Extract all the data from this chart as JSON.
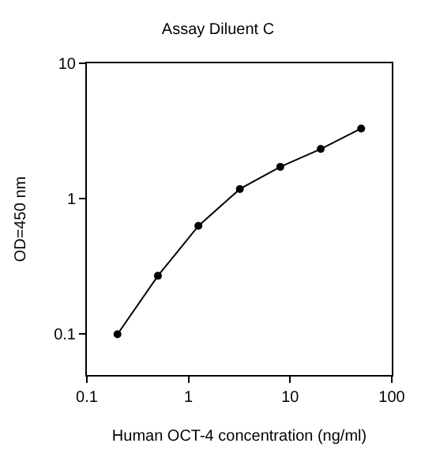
{
  "chart_data": {
    "type": "line",
    "title": "Assay Diluent C",
    "xlabel": "Human OCT-4 concentration (ng/ml)",
    "ylabel": "OD=450 nm",
    "x": [
      0.2,
      0.5,
      1.25,
      3.2,
      8,
      20,
      50
    ],
    "series": [
      {
        "color": "#000000",
        "values": [
          0.1,
          0.27,
          0.63,
          1.18,
          1.72,
          2.33,
          3.3
        ]
      }
    ],
    "log": "xy",
    "xlim": [
      0.1,
      100
    ],
    "ylim": [
      0.05,
      10
    ],
    "xticks": [
      0.1,
      1,
      10,
      100
    ],
    "yticks": [
      0.1,
      1,
      10
    ],
    "legend": false,
    "marker": "circle",
    "line_style": "solid"
  }
}
